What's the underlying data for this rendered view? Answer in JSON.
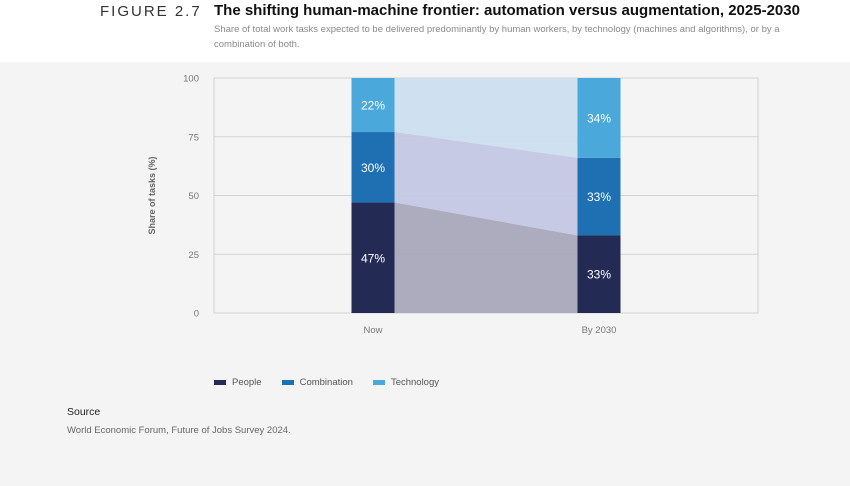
{
  "figure": {
    "label": "FIGURE 2.7",
    "title": "The shifting human-machine frontier: automation versus augmentation, 2025-2030",
    "subtitle": "Share of total work tasks expected to be delivered predominantly by human workers, by technology (machines and algorithms), or by a combination of both."
  },
  "source": {
    "title": "Source",
    "text": "World Economic Forum, Future of Jobs Survey 2024."
  },
  "colors": {
    "people": "#232b54",
    "combination": "#1f70b2",
    "technology": "#4aa8da",
    "people_area": "#a9a6bb",
    "combination_area": "#c3c7e3",
    "technology_area": "#ccdef0"
  },
  "chart_data": {
    "type": "bar",
    "stacked": true,
    "categories": [
      "Now",
      "By 2030"
    ],
    "series": [
      {
        "name": "People",
        "values": [
          47,
          33
        ],
        "labels": [
          "47%",
          "33%"
        ]
      },
      {
        "name": "Combination",
        "values": [
          30,
          33
        ],
        "labels": [
          "30%",
          "33%"
        ]
      },
      {
        "name": "Technology",
        "values": [
          22,
          34
        ],
        "labels": [
          "22%",
          "34%"
        ]
      }
    ],
    "ylabel": "Share of tasks (%)",
    "xlabel": "",
    "ylim": [
      0,
      100
    ],
    "yticks": [
      0,
      25,
      50,
      75,
      100
    ],
    "grid": true,
    "legend_placement": "bottom-left"
  }
}
